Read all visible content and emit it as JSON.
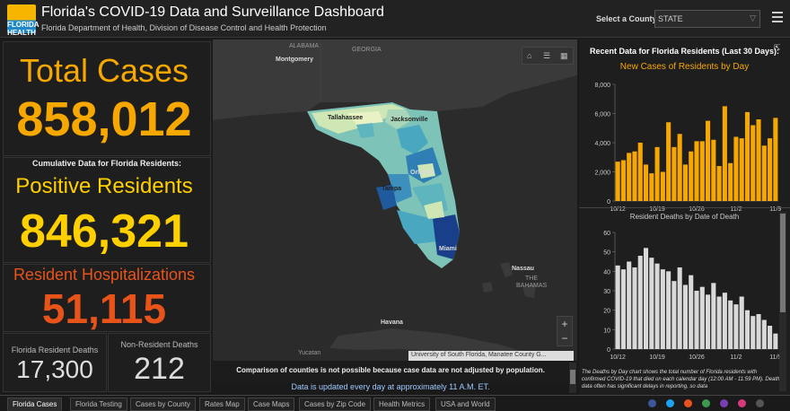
{
  "header": {
    "title": "Florida's COVID-19 Data and Surveillance Dashboard",
    "subtitle": "Florida Department of Health, Division of Disease Control and Health Protection",
    "logo_text": "FLORIDA HEALTH",
    "select_label": "Select a County",
    "select_value": "STATE"
  },
  "stats": {
    "total_cases_label": "Total Cases",
    "total_cases_value": "858,012",
    "cumulative_label": "Cumulative Data for Florida Residents:",
    "positive_label": "Positive Residents",
    "positive_value": "846,321",
    "hosp_label": "Resident Hospitalizations",
    "hosp_value": "51,115",
    "fl_deaths_label": "Florida Resident Deaths",
    "fl_deaths_value": "17,300",
    "nonres_deaths_label": "Non-Resident Deaths",
    "nonres_deaths_value": "212"
  },
  "map": {
    "labels": {
      "alabama": "ALABAMA",
      "georgia": "GEORGIA",
      "montgomery": "Montgomery",
      "tallahassee": "Tallahassee",
      "jacksonville": "Jacksonville",
      "orlando": "Orlando",
      "tampa": "Tampa",
      "miami": "Miami",
      "nassau": "Nassau",
      "the": "THE",
      "bahamas": "BAHAMAS",
      "havana": "Havana",
      "yucatan": "Yucatan"
    },
    "attribution": "University of South Florida, Manatee County G..."
  },
  "notes": {
    "comparison": "Comparison of counties is not possible because case data are not adjusted by population.",
    "update": "Data is updated every day at approximately 11 A.M. ET."
  },
  "right_panel": {
    "title": "Recent Data for Florida Residents (Last 30 Days):",
    "note": "The Deaths by Day chart shows the total number of Florida residents with confirmed COVID-19 that died on each calendar day (12:00 AM - 11:59 PM). Death data often has significant delays in reporting, so data"
  },
  "tabs": [
    "Florida Cases",
    "Florida Testing",
    "Cases by County",
    "Rates Map",
    "Case Maps",
    "Cases by Zip Code",
    "Health Metrics",
    "USA and World"
  ],
  "colors": {
    "cases": "#f7a800",
    "deaths": "#d9d9d9",
    "accent": "#e8531a"
  },
  "chart_data": [
    {
      "type": "bar",
      "title": "New Cases of Residents by Day",
      "categories": [
        "10/12",
        "10/13",
        "10/14",
        "10/15",
        "10/16",
        "10/17",
        "10/18",
        "10/19",
        "10/20",
        "10/21",
        "10/22",
        "10/23",
        "10/24",
        "10/25",
        "10/26",
        "10/27",
        "10/28",
        "10/29",
        "10/30",
        "10/31",
        "11/1",
        "11/2",
        "11/3",
        "11/4",
        "11/5",
        "11/6",
        "11/7",
        "11/8",
        "11/9"
      ],
      "x_tick_labels": [
        "10/12",
        "10/19",
        "10/26",
        "11/2",
        "11/9"
      ],
      "values": [
        2700,
        2800,
        3300,
        3400,
        4000,
        2500,
        1900,
        3700,
        2000,
        5400,
        3700,
        4600,
        2500,
        3400,
        4100,
        4100,
        5500,
        4200,
        2400,
        6500,
        2600,
        4400,
        4300,
        6100,
        5200,
        5600,
        3800,
        4300,
        5700
      ],
      "ylim": [
        0,
        8000
      ],
      "yticks": [
        "0",
        "2,000",
        "4,000",
        "6,000",
        "8,000"
      ]
    },
    {
      "type": "bar",
      "title": "Resident Deaths by Date of Death",
      "categories": [
        "10/12",
        "10/13",
        "10/14",
        "10/15",
        "10/16",
        "10/17",
        "10/18",
        "10/19",
        "10/20",
        "10/21",
        "10/22",
        "10/23",
        "10/24",
        "10/25",
        "10/26",
        "10/27",
        "10/28",
        "10/29",
        "10/30",
        "10/31",
        "11/1",
        "11/2",
        "11/3",
        "11/4",
        "11/5",
        "11/6",
        "11/7",
        "11/8",
        "11/9"
      ],
      "x_tick_labels": [
        "10/12",
        "10/19",
        "10/26",
        "11/2",
        "11/9"
      ],
      "values": [
        43,
        41,
        45,
        42,
        48,
        52,
        47,
        44,
        41,
        40,
        35,
        42,
        33,
        38,
        30,
        32,
        28,
        34,
        27,
        29,
        25,
        23,
        27,
        20,
        17,
        18,
        15,
        12,
        8
      ],
      "ylim": [
        0,
        60
      ],
      "yticks": [
        "0",
        "10",
        "20",
        "30",
        "40",
        "50",
        "60"
      ]
    }
  ]
}
